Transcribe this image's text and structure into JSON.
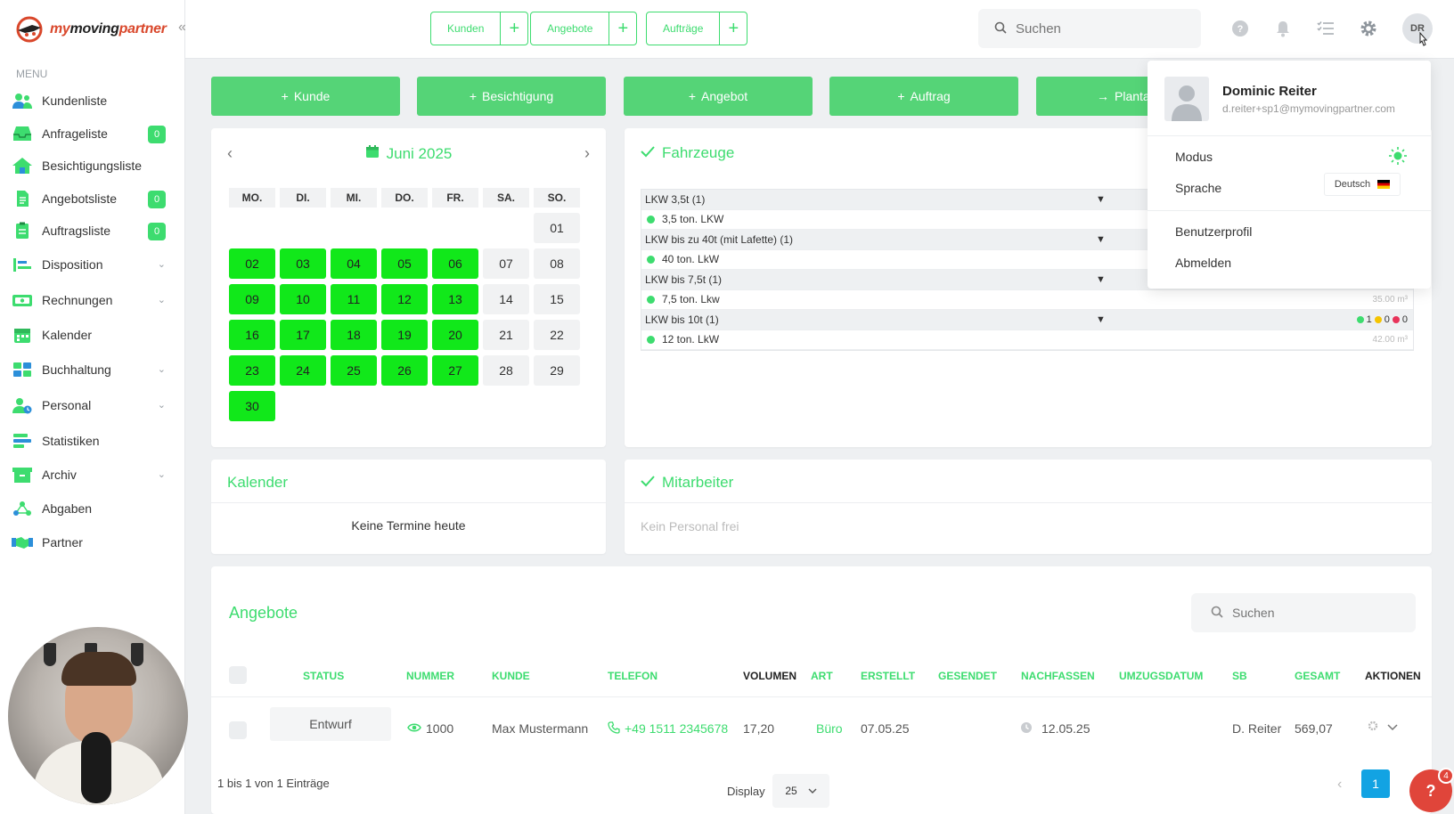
{
  "brand": {
    "name_part1": "my",
    "name_part2": "moving",
    "name_part3": "partner",
    "collapse": "«"
  },
  "menu": {
    "title": "MENU",
    "items": [
      {
        "label": "Kundenliste",
        "icon": "users-icon"
      },
      {
        "label": "Anfrageliste",
        "icon": "inbox-icon",
        "badge": "0"
      },
      {
        "label": "Besichtigungsliste",
        "icon": "house-icon"
      },
      {
        "label": "Angebotsliste",
        "icon": "document-icon",
        "badge": "0"
      },
      {
        "label": "Auftragsliste",
        "icon": "clipboard-icon",
        "badge": "0"
      },
      {
        "label": "Disposition",
        "icon": "disposition-icon",
        "expandable": true
      },
      {
        "label": "Rechnungen",
        "icon": "invoice-icon",
        "expandable": true
      },
      {
        "label": "Kalender",
        "icon": "calendar-icon"
      },
      {
        "label": "Buchhaltung",
        "icon": "accounting-icon",
        "expandable": true
      },
      {
        "label": "Personal",
        "icon": "staff-icon",
        "expandable": true
      },
      {
        "label": "Statistiken",
        "icon": "stats-icon"
      },
      {
        "label": "Archiv",
        "icon": "archive-icon",
        "expandable": true
      },
      {
        "label": "Abgaben",
        "icon": "network-icon"
      },
      {
        "label": "Partner",
        "icon": "handshake-icon"
      }
    ]
  },
  "topbar": {
    "quick": [
      {
        "label": "Kunden",
        "plus": "+"
      },
      {
        "label": "Angebote",
        "plus": "+"
      },
      {
        "label": "Aufträge",
        "plus": "+"
      }
    ],
    "search_placeholder": "Suchen",
    "avatar_initials": "DR"
  },
  "actions": [
    {
      "label": "Kunde",
      "prefix": "+"
    },
    {
      "label": "Besichtigung",
      "prefix": "+"
    },
    {
      "label": "Angebot",
      "prefix": "+"
    },
    {
      "label": "Auftrag",
      "prefix": "+"
    },
    {
      "label": "Planta",
      "prefix": "→"
    }
  ],
  "calendar": {
    "title": "Juni 2025",
    "weekdays": [
      "MO.",
      "DI.",
      "MI.",
      "DO.",
      "FR.",
      "SA.",
      "SO."
    ],
    "leading_blanks": 6,
    "days": [
      {
        "d": "01",
        "on": false
      },
      {
        "d": "02",
        "on": true
      },
      {
        "d": "03",
        "on": true
      },
      {
        "d": "04",
        "on": true
      },
      {
        "d": "05",
        "on": true
      },
      {
        "d": "06",
        "on": true
      },
      {
        "d": "07",
        "on": false
      },
      {
        "d": "08",
        "on": false
      },
      {
        "d": "09",
        "on": true
      },
      {
        "d": "10",
        "on": true
      },
      {
        "d": "11",
        "on": true
      },
      {
        "d": "12",
        "on": true
      },
      {
        "d": "13",
        "on": true
      },
      {
        "d": "14",
        "on": false
      },
      {
        "d": "15",
        "on": false
      },
      {
        "d": "16",
        "on": true
      },
      {
        "d": "17",
        "on": true
      },
      {
        "d": "18",
        "on": true
      },
      {
        "d": "19",
        "on": true
      },
      {
        "d": "20",
        "on": true
      },
      {
        "d": "21",
        "on": false
      },
      {
        "d": "22",
        "on": false
      },
      {
        "d": "23",
        "on": true
      },
      {
        "d": "24",
        "on": true
      },
      {
        "d": "25",
        "on": true
      },
      {
        "d": "26",
        "on": true
      },
      {
        "d": "27",
        "on": true
      },
      {
        "d": "28",
        "on": false
      },
      {
        "d": "29",
        "on": false
      },
      {
        "d": "30",
        "on": true
      }
    ]
  },
  "vehicles": {
    "title": "Fahrzeuge",
    "rows": [
      {
        "type": "group",
        "label": "LKW 3,5t (1)",
        "arrow": "▼"
      },
      {
        "type": "item",
        "label": "3,5 ton. LKW",
        "cap": ""
      },
      {
        "type": "group",
        "label": "LKW bis zu 40t (mit Lafette) (1)",
        "arrow": "▼"
      },
      {
        "type": "item",
        "label": "40 ton. LkW",
        "cap": ""
      },
      {
        "type": "group",
        "label": "LKW bis 7,5t (1)",
        "arrow": "▼"
      },
      {
        "type": "item",
        "label": "7,5 ton. Lkw",
        "cap": "35.00 m³"
      },
      {
        "type": "group",
        "label": "LKW bis 10t (1)",
        "arrow": "▼",
        "stat": [
          "1",
          "0",
          "0"
        ]
      },
      {
        "type": "item",
        "label": "12 ton. LkW",
        "cap": "42.00 m³"
      }
    ],
    "status_colors": [
      "#3ddc6f",
      "#f5c400",
      "#e8335a"
    ]
  },
  "user_menu": {
    "name": "Dominic Reiter",
    "email": "d.reiter+sp1@mymovingpartner.com",
    "mode_label": "Modus",
    "language_label": "Sprache",
    "language_value": "Deutsch",
    "profile_label": "Benutzerprofil",
    "logout_label": "Abmelden"
  },
  "kalender_card": {
    "title": "Kalender",
    "empty": "Keine Termine heute"
  },
  "mitarbeiter_card": {
    "title": "Mitarbeiter",
    "empty": "Kein Personal frei"
  },
  "angebote": {
    "title": "Angebote",
    "search_placeholder": "Suchen",
    "columns": [
      "STATUS",
      "NUMMER",
      "KUNDE",
      "TELEFON",
      "VOLUMEN",
      "ART",
      "ERSTELLT",
      "GESENDET",
      "NACHFASSEN",
      "UMZUGSDATUM",
      "SB",
      "GESAMT",
      "AKTIONEN"
    ],
    "row": {
      "status": "Entwurf",
      "nummer": "1000",
      "kunde": "Max Mustermann",
      "telefon": "+49 1511 2345678",
      "volumen": "17,20",
      "art": "Büro",
      "erstellt": "07.05.25",
      "nachfassen": "12.05.25",
      "sb": "D. Reiter",
      "gesamt": "569,07"
    },
    "footer": "1 bis 1 von 1 Einträge",
    "display_label": "Display",
    "display_value": "25",
    "page": "1"
  },
  "help": {
    "label": "?",
    "badge": "4"
  },
  "colors": {
    "accent": "#3ddc6f",
    "calendar_on": "#11e81a",
    "button": "#55d477",
    "pager": "#12a3e3"
  }
}
